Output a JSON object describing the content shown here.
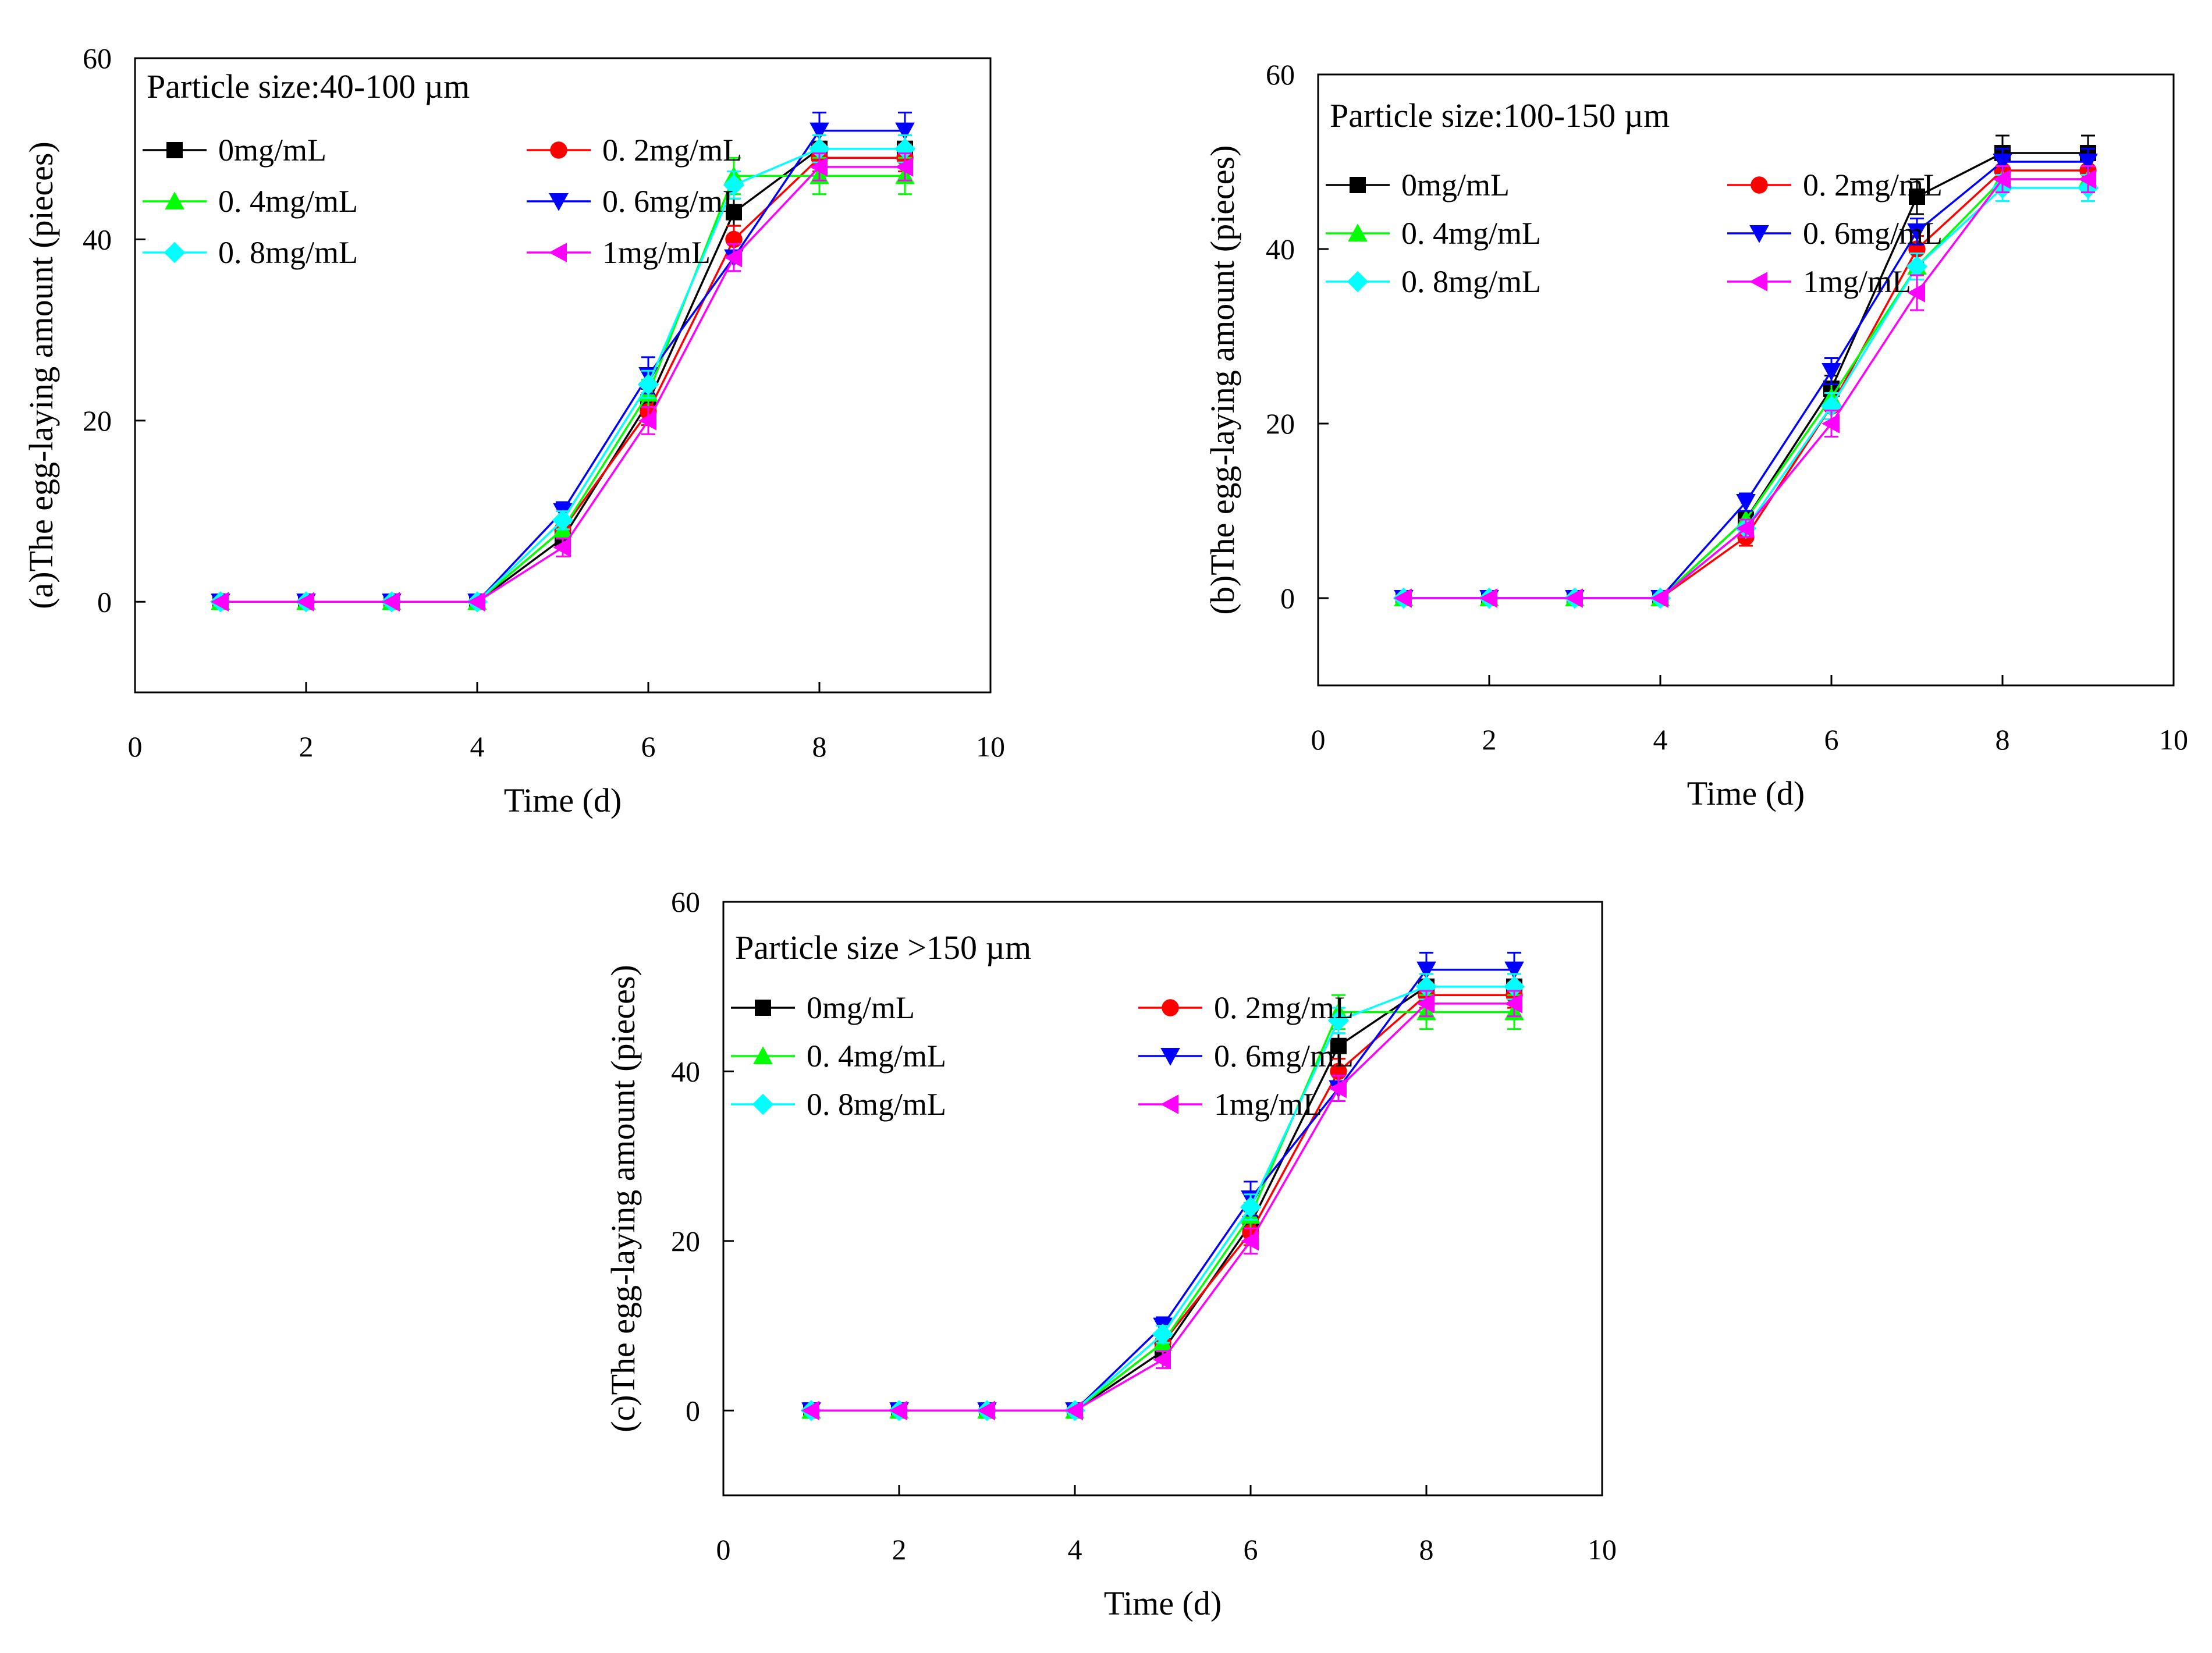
{
  "figure_colors": {
    "0mg/mL": "#000000",
    "0.2mg/mL": "#ff0000",
    "0.4mg/mL": "#00ff00",
    "0.6mg/mL": "#0000ff",
    "0.8mg/mL": "#00ffff",
    "1mg/mL": "#ff00ff"
  },
  "chart_data": [
    {
      "type": "line",
      "panel": "a",
      "title": "Particle size:40-100 µm",
      "xlabel": "Time (d)",
      "ylabel": "(a)The egg-laying amount (pieces)",
      "xlim": [
        0,
        10
      ],
      "ylim": [
        -10,
        60
      ],
      "xticks": [
        0,
        2,
        4,
        6,
        8,
        10
      ],
      "yticks": [
        0,
        20,
        40,
        60
      ],
      "x": [
        1,
        2,
        3,
        4,
        5,
        6,
        7,
        8,
        9
      ],
      "series": [
        {
          "name": "0mg/mL",
          "marker": "square",
          "color": "#000000",
          "values": [
            0,
            0,
            0,
            0,
            7,
            22,
            43,
            50,
            50
          ],
          "errors": [
            0,
            0,
            0,
            0,
            1,
            1.5,
            1.5,
            1.5,
            1.5
          ]
        },
        {
          "name": "0.2mg/mL",
          "marker": "circle",
          "color": "#ff0000",
          "values": [
            0,
            0,
            0,
            0,
            8,
            21,
            40,
            49,
            49
          ],
          "errors": [
            0,
            0,
            0,
            0,
            1,
            1.5,
            1.5,
            1.5,
            1.5
          ]
        },
        {
          "name": "0.4mg/mL",
          "marker": "triangle-up",
          "color": "#00ff00",
          "values": [
            0,
            0,
            0,
            0,
            8,
            23,
            47,
            47,
            47
          ],
          "errors": [
            0,
            0,
            0,
            0,
            1,
            1.5,
            2,
            2,
            2
          ]
        },
        {
          "name": "0.6mg/mL",
          "marker": "triangle-down",
          "color": "#0000ff",
          "values": [
            0,
            0,
            0,
            0,
            10,
            25,
            38,
            52,
            52
          ],
          "errors": [
            0,
            0,
            0,
            0,
            1,
            2,
            1.5,
            2,
            2
          ]
        },
        {
          "name": "0.8mg/mL",
          "marker": "diamond",
          "color": "#00ffff",
          "values": [
            0,
            0,
            0,
            0,
            9,
            24,
            46,
            50,
            50
          ],
          "errors": [
            0,
            0,
            0,
            0,
            1,
            1.5,
            1.5,
            1.5,
            1.5
          ]
        },
        {
          "name": "1mg/mL",
          "marker": "triangle-left",
          "color": "#ff00ff",
          "values": [
            0,
            0,
            0,
            0,
            6,
            20,
            38,
            48,
            48
          ],
          "errors": [
            0,
            0,
            0,
            0,
            1,
            1.5,
            1.5,
            1.5,
            1.5
          ]
        }
      ]
    },
    {
      "type": "line",
      "panel": "b",
      "title": "Particle size:100-150 µm",
      "xlabel": "Time (d)",
      "ylabel": "(b)The egg-laying amount (pieces)",
      "xlim": [
        0,
        10
      ],
      "ylim": [
        -10,
        60
      ],
      "xticks": [
        0,
        2,
        4,
        6,
        8,
        10
      ],
      "yticks": [
        0,
        20,
        40,
        60
      ],
      "x": [
        1,
        2,
        3,
        4,
        5,
        6,
        7,
        8,
        9
      ],
      "series": [
        {
          "name": "0mg/mL",
          "marker": "square",
          "color": "#000000",
          "values": [
            0,
            0,
            0,
            0,
            9,
            24,
            46,
            51,
            51
          ],
          "errors": [
            0,
            0,
            0,
            0,
            1,
            1.5,
            2,
            2,
            2
          ]
        },
        {
          "name": "0.2mg/mL",
          "marker": "circle",
          "color": "#ff0000",
          "values": [
            0,
            0,
            0,
            0,
            7,
            22,
            40,
            49,
            49
          ],
          "errors": [
            0,
            0,
            0,
            0,
            1,
            1.5,
            1.5,
            1.5,
            1.5
          ]
        },
        {
          "name": "0.4mg/mL",
          "marker": "triangle-up",
          "color": "#00ff00",
          "values": [
            0,
            0,
            0,
            0,
            9,
            23,
            38,
            48,
            48
          ],
          "errors": [
            0,
            0,
            0,
            0,
            1,
            1.5,
            1.5,
            1.5,
            1.5
          ]
        },
        {
          "name": "0.6mg/mL",
          "marker": "triangle-down",
          "color": "#0000ff",
          "values": [
            0,
            0,
            0,
            0,
            11,
            26,
            42,
            50,
            50
          ],
          "errors": [
            0,
            0,
            0,
            0,
            1,
            1.5,
            1.5,
            1.5,
            1.5
          ]
        },
        {
          "name": "0.8mg/mL",
          "marker": "diamond",
          "color": "#00ffff",
          "values": [
            0,
            0,
            0,
            0,
            8,
            22,
            38,
            47,
            47
          ],
          "errors": [
            0,
            0,
            0,
            0,
            1,
            1.5,
            1.5,
            1.5,
            1.5
          ]
        },
        {
          "name": "1mg/mL",
          "marker": "triangle-left",
          "color": "#ff00ff",
          "values": [
            0,
            0,
            0,
            0,
            8,
            20,
            35,
            48,
            48
          ],
          "errors": [
            0,
            0,
            0,
            0,
            1,
            1.5,
            2,
            1.5,
            1.5
          ]
        }
      ]
    },
    {
      "type": "line",
      "panel": "c",
      "title": "Particle size >150 µm",
      "xlabel": "Time (d)",
      "ylabel": "(c)The egg-laying amount (pieces)",
      "xlim": [
        0,
        10
      ],
      "ylim": [
        -10,
        60
      ],
      "xticks": [
        0,
        2,
        4,
        6,
        8,
        10
      ],
      "yticks": [
        0,
        20,
        40,
        60
      ],
      "x": [
        1,
        2,
        3,
        4,
        5,
        6,
        7,
        8,
        9
      ],
      "series": [
        {
          "name": "0mg/mL",
          "marker": "square",
          "color": "#000000",
          "values": [
            0,
            0,
            0,
            0,
            7,
            22,
            43,
            50,
            50
          ],
          "errors": [
            0,
            0,
            0,
            0,
            1,
            1.5,
            1.5,
            1.5,
            1.5
          ]
        },
        {
          "name": "0.2mg/mL",
          "marker": "circle",
          "color": "#ff0000",
          "values": [
            0,
            0,
            0,
            0,
            8,
            21,
            40,
            49,
            49
          ],
          "errors": [
            0,
            0,
            0,
            0,
            1,
            1.5,
            1.5,
            1.5,
            1.5
          ]
        },
        {
          "name": "0.4mg/mL",
          "marker": "triangle-up",
          "color": "#00ff00",
          "values": [
            0,
            0,
            0,
            0,
            8,
            23,
            47,
            47,
            47
          ],
          "errors": [
            0,
            0,
            0,
            0,
            1,
            1.5,
            2,
            2,
            2
          ]
        },
        {
          "name": "0.6mg/mL",
          "marker": "triangle-down",
          "color": "#0000ff",
          "values": [
            0,
            0,
            0,
            0,
            10,
            25,
            38,
            52,
            52
          ],
          "errors": [
            0,
            0,
            0,
            0,
            1,
            2,
            1.5,
            2,
            2
          ]
        },
        {
          "name": "0.8mg/mL",
          "marker": "diamond",
          "color": "#00ffff",
          "values": [
            0,
            0,
            0,
            0,
            9,
            24,
            46,
            50,
            50
          ],
          "errors": [
            0,
            0,
            0,
            0,
            1,
            1.5,
            1.5,
            1.5,
            1.5
          ]
        },
        {
          "name": "1mg/mL",
          "marker": "triangle-left",
          "color": "#ff00ff",
          "values": [
            0,
            0,
            0,
            0,
            6,
            20,
            38,
            48,
            48
          ],
          "errors": [
            0,
            0,
            0,
            0,
            1,
            1.5,
            1.5,
            1.5,
            1.5
          ]
        }
      ]
    }
  ],
  "legend_labels": [
    [
      "0mg/mL",
      "0. 2mg/mL"
    ],
    [
      "0. 4mg/mL",
      "0. 6mg/mL"
    ],
    [
      "0. 8mg/mL",
      "1mg/mL"
    ]
  ]
}
